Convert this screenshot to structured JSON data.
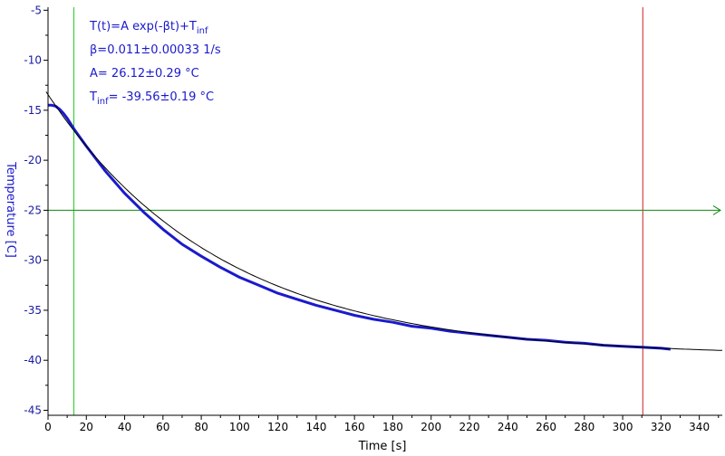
{
  "chart_data": {
    "type": "line",
    "title": "",
    "xlabel": "Time [s]",
    "ylabel": "Temperature [C]",
    "xlim": [
      0,
      352
    ],
    "ylim": [
      -45.5,
      -4.7
    ],
    "x_ticks": [
      0,
      20,
      40,
      60,
      80,
      100,
      120,
      140,
      160,
      180,
      200,
      220,
      240,
      260,
      280,
      300,
      320,
      340
    ],
    "x_tick_labels": [
      "0",
      "20",
      "40",
      "60",
      "80",
      "100",
      "120",
      "140",
      "160",
      "180",
      "200",
      "220",
      "240",
      "260",
      "280",
      "300",
      "320",
      "340"
    ],
    "y_ticks": [
      -5,
      -10,
      -15,
      -20,
      -25,
      -30,
      -35,
      -40,
      -45
    ],
    "y_tick_labels": [
      "-5",
      "-10",
      "-15",
      "-20",
      "-25",
      "-30",
      "-35",
      "-40",
      "-45"
    ],
    "grid": false,
    "fit": {
      "A": 26.12,
      "beta": 0.011,
      "T_inf": -39.56,
      "x_start": -1,
      "x_end": 352
    },
    "series": [
      {
        "x": [
          0,
          2,
          4,
          6,
          8,
          10,
          14,
          20,
          30,
          40,
          50,
          60,
          70,
          80,
          90,
          100,
          110,
          120,
          130,
          140,
          150,
          160,
          170,
          180,
          190,
          200,
          210,
          220,
          230,
          240,
          250,
          260,
          270,
          280,
          290,
          300,
          310,
          320,
          325
        ],
        "y": [
          -14.5,
          -14.5,
          -14.6,
          -14.9,
          -15.3,
          -15.8,
          -17.0,
          -18.6,
          -21.1,
          -23.3,
          -25.2,
          -26.9,
          -28.4,
          -29.6,
          -30.7,
          -31.7,
          -32.5,
          -33.3,
          -33.9,
          -34.5,
          -35.0,
          -35.5,
          -35.9,
          -36.2,
          -36.6,
          -36.8,
          -37.1,
          -37.3,
          -37.5,
          -37.7,
          -37.9,
          -38.0,
          -38.2,
          -38.3,
          -38.5,
          -38.6,
          -38.7,
          -38.8,
          -38.9
        ]
      }
    ],
    "cursors": {
      "vertical_green_x": 13.5,
      "vertical_red_x": 310.5,
      "horizontal_green_y": -25
    },
    "annotations": {
      "formula_main": "T(t)=A exp(-βt)+T",
      "formula_sub": "inf",
      "beta": "β=0.011±0.00033 1/s",
      "amp": "A= 26.12±0.29 °C",
      "tinf_main": "T",
      "tinf_sub": "inf",
      "tinf_rest": "= -39.56±0.19 °C"
    },
    "colors": {
      "data": "#1a1acc",
      "fit": "#000000",
      "cursor_green": "#22cc22",
      "cursor_red": "#cc2222",
      "hline_green": "#118811",
      "axis": "#000000",
      "y_text": "#1a1aa0"
    }
  }
}
